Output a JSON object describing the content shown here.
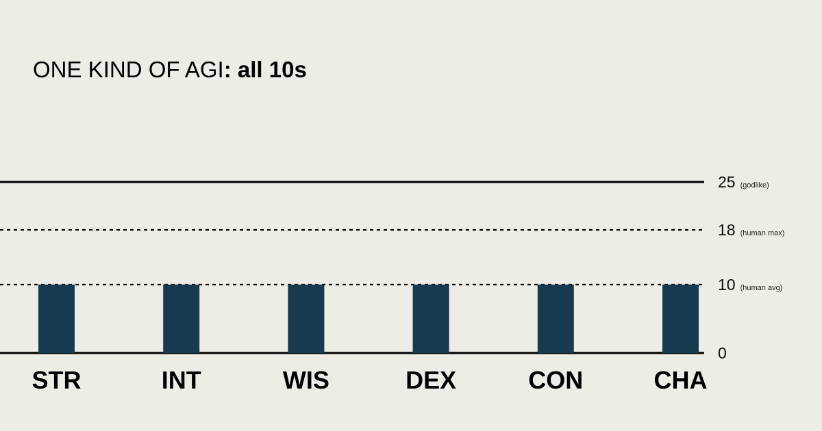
{
  "chart_data": {
    "type": "bar",
    "title": "ONE KIND OF AGI",
    "title_bold": ": all 10s",
    "categories": [
      "STR",
      "INT",
      "WIS",
      "DEX",
      "CON",
      "CHA"
    ],
    "values": [
      10,
      10,
      10,
      10,
      10,
      10
    ],
    "ylim": [
      0,
      25
    ],
    "xlabel": "",
    "ylabel": "",
    "legend": "none",
    "grid": false,
    "reference_lines": [
      {
        "value": 25,
        "label": "25",
        "note": "(godlike)",
        "style": "solid"
      },
      {
        "value": 18,
        "label": "18",
        "note": "(human max)",
        "style": "dashed"
      },
      {
        "value": 10,
        "label": "10",
        "note": "(human avg)",
        "style": "dashed"
      },
      {
        "value": 0,
        "label": "0",
        "note": "",
        "style": "solid"
      }
    ]
  },
  "colors": {
    "background": "#edece5",
    "bar": "#173a4f",
    "line": "#000000"
  }
}
